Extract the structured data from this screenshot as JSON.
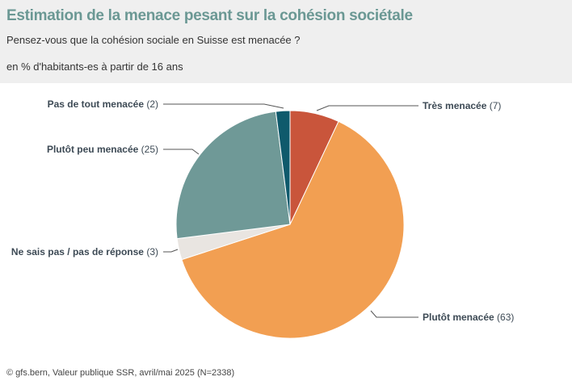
{
  "header": {
    "title": "Estimation de la menace pesant sur la cohésion sociétale",
    "subtitle": "Pensez-vous que la cohésion sociale en Suisse est menacée ?",
    "unit": "en % d'habitants-es à partir de 16 ans"
  },
  "chart_data": {
    "type": "pie",
    "title": "Estimation de la menace pesant sur la cohésion sociétale",
    "slices": [
      {
        "label": "Très menacée",
        "value": 7,
        "display": "(7)",
        "color": "#c9553b"
      },
      {
        "label": "Plutôt menacée",
        "value": 63,
        "display": "(63)",
        "color": "#f29f52"
      },
      {
        "label": "Ne sais pas / pas de réponse",
        "value": 3,
        "display": "(3)",
        "color": "#e9e5e1"
      },
      {
        "label": "Plutôt peu menacée",
        "value": 25,
        "display": "(25)",
        "color": "#6f9997"
      },
      {
        "label": "Pas de tout menacée",
        "value": 2,
        "display": "(2)",
        "color": "#0f5a6c"
      }
    ],
    "start": "top",
    "direction": "clockwise"
  },
  "footer": {
    "source": "© gfs.bern, Valeur publique SSR, avril/mai 2025 (N=2338)"
  }
}
